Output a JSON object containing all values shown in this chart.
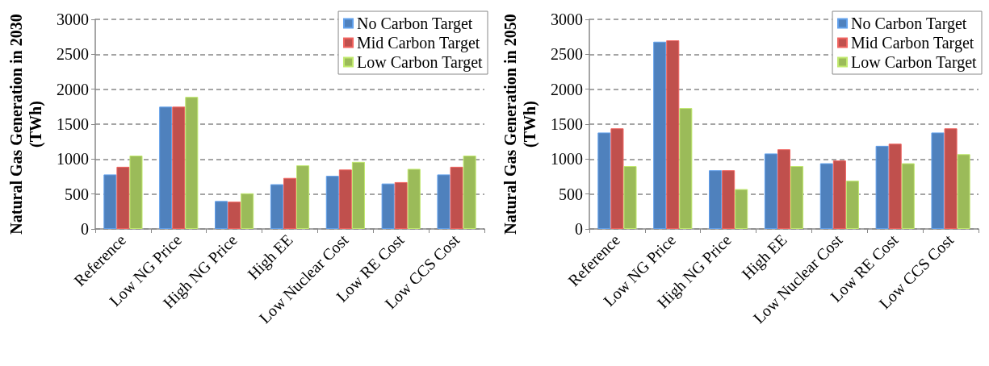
{
  "chart_data": [
    {
      "type": "bar",
      "ylabel": "Natural Gas Generation in 2030 (TWh)",
      "categories": [
        "Reference",
        "Low NG Price",
        "High NG Price",
        "High EE",
        "Low Nuclear Cost",
        "Low RE Cost",
        "Low CCS Cost"
      ],
      "series": [
        {
          "name": "No Carbon Target",
          "color": "#4f81bd",
          "values": [
            780,
            1750,
            400,
            640,
            760,
            650,
            780
          ]
        },
        {
          "name": "Mid Carbon Target",
          "color": "#c0504d",
          "values": [
            890,
            1750,
            390,
            730,
            850,
            670,
            890
          ]
        },
        {
          "name": "Low Carbon Target",
          "color": "#9bbb59",
          "values": [
            1050,
            1890,
            510,
            910,
            960,
            860,
            1050
          ]
        }
      ],
      "ylim": [
        0,
        3000
      ],
      "yticks": [
        0,
        500,
        1000,
        1500,
        2000,
        2500,
        3000
      ],
      "grid": "y",
      "legend": "top right"
    },
    {
      "type": "bar",
      "ylabel": "Natural Gas Generation in 2050 (TWh)",
      "categories": [
        "Reference",
        "Low NG Price",
        "High NG Price",
        "High EE",
        "Low Nuclear Cost",
        "Low RE Cost",
        "Low CCS Cost"
      ],
      "series": [
        {
          "name": "No Carbon Target",
          "color": "#4f81bd",
          "values": [
            1380,
            2680,
            840,
            1080,
            940,
            1190,
            1380
          ]
        },
        {
          "name": "Mid Carbon Target",
          "color": "#c0504d",
          "values": [
            1440,
            2700,
            840,
            1140,
            980,
            1220,
            1440
          ]
        },
        {
          "name": "Low Carbon Target",
          "color": "#9bbb59",
          "values": [
            900,
            1730,
            570,
            900,
            690,
            940,
            1070
          ]
        }
      ],
      "ylim": [
        0,
        3000
      ],
      "yticks": [
        0,
        500,
        1000,
        1500,
        2000,
        2500,
        3000
      ],
      "grid": "y",
      "legend": "top right"
    }
  ]
}
